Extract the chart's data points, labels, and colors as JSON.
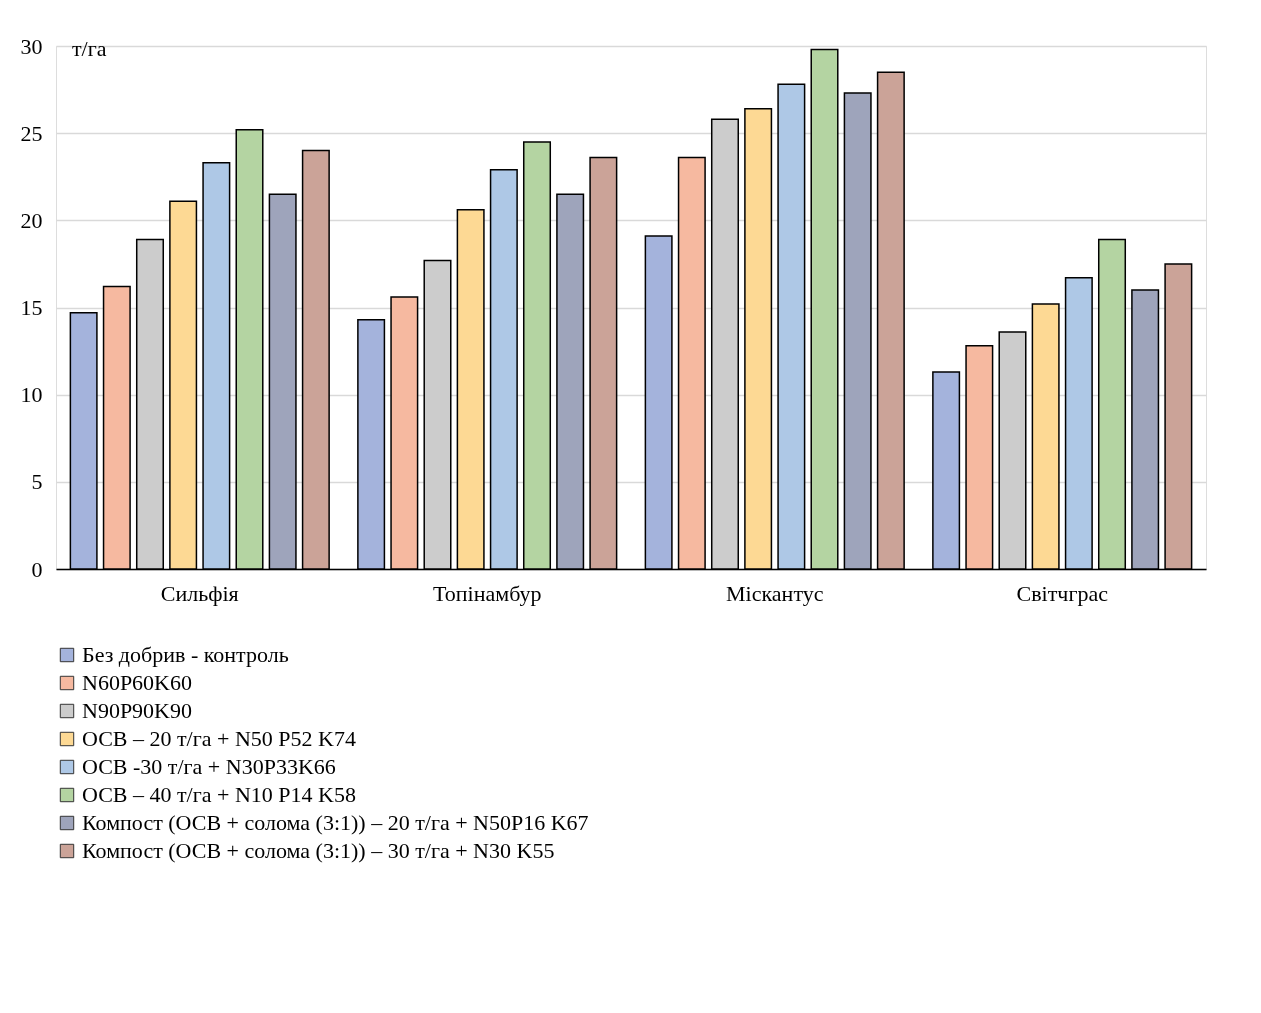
{
  "chart_data": {
    "type": "bar",
    "ylabel": "т/га",
    "categories": [
      "Сильфія",
      "Топінамбур",
      "Міскантус",
      "Світчграс"
    ],
    "series": [
      {
        "name": "Без добрив - контроль",
        "color": "#a4b3dc",
        "values": [
          14.7,
          14.3,
          19.1,
          11.3
        ]
      },
      {
        "name": "N60P60K60",
        "color": "#f6b9a0",
        "values": [
          16.2,
          15.6,
          23.6,
          12.8
        ]
      },
      {
        "name": "N90P90K90",
        "color": "#cccccc",
        "values": [
          18.9,
          17.7,
          25.8,
          13.6
        ]
      },
      {
        "name": "ОСВ – 20 т/га + N50 P52 K74",
        "color": "#fdd994",
        "values": [
          21.1,
          20.6,
          26.4,
          15.2
        ]
      },
      {
        "name": "ОСВ -30 т/га + N30P33K66",
        "color": "#aec8e6",
        "values": [
          23.3,
          22.9,
          27.8,
          16.7
        ]
      },
      {
        "name": "ОСВ – 40 т/га + N10 P14 K58",
        "color": "#b4d4a2",
        "values": [
          25.2,
          24.5,
          29.8,
          18.9
        ]
      },
      {
        "name": "Компост (ОСВ + солома (3:1)) – 20 т/га + N50P16 K67",
        "color": "#9ea4bb",
        "values": [
          21.5,
          21.5,
          27.3,
          16.0
        ]
      },
      {
        "name": "Компост (ОСВ + солома (3:1)) – 30 т/га + N30 K55",
        "color": "#cba398",
        "values": [
          24.0,
          23.6,
          28.5,
          17.5
        ]
      }
    ],
    "ylim": [
      0,
      30
    ],
    "yticks": [
      0,
      5,
      10,
      15,
      20,
      25,
      30
    ],
    "grid": "y",
    "legend": "bottom"
  }
}
